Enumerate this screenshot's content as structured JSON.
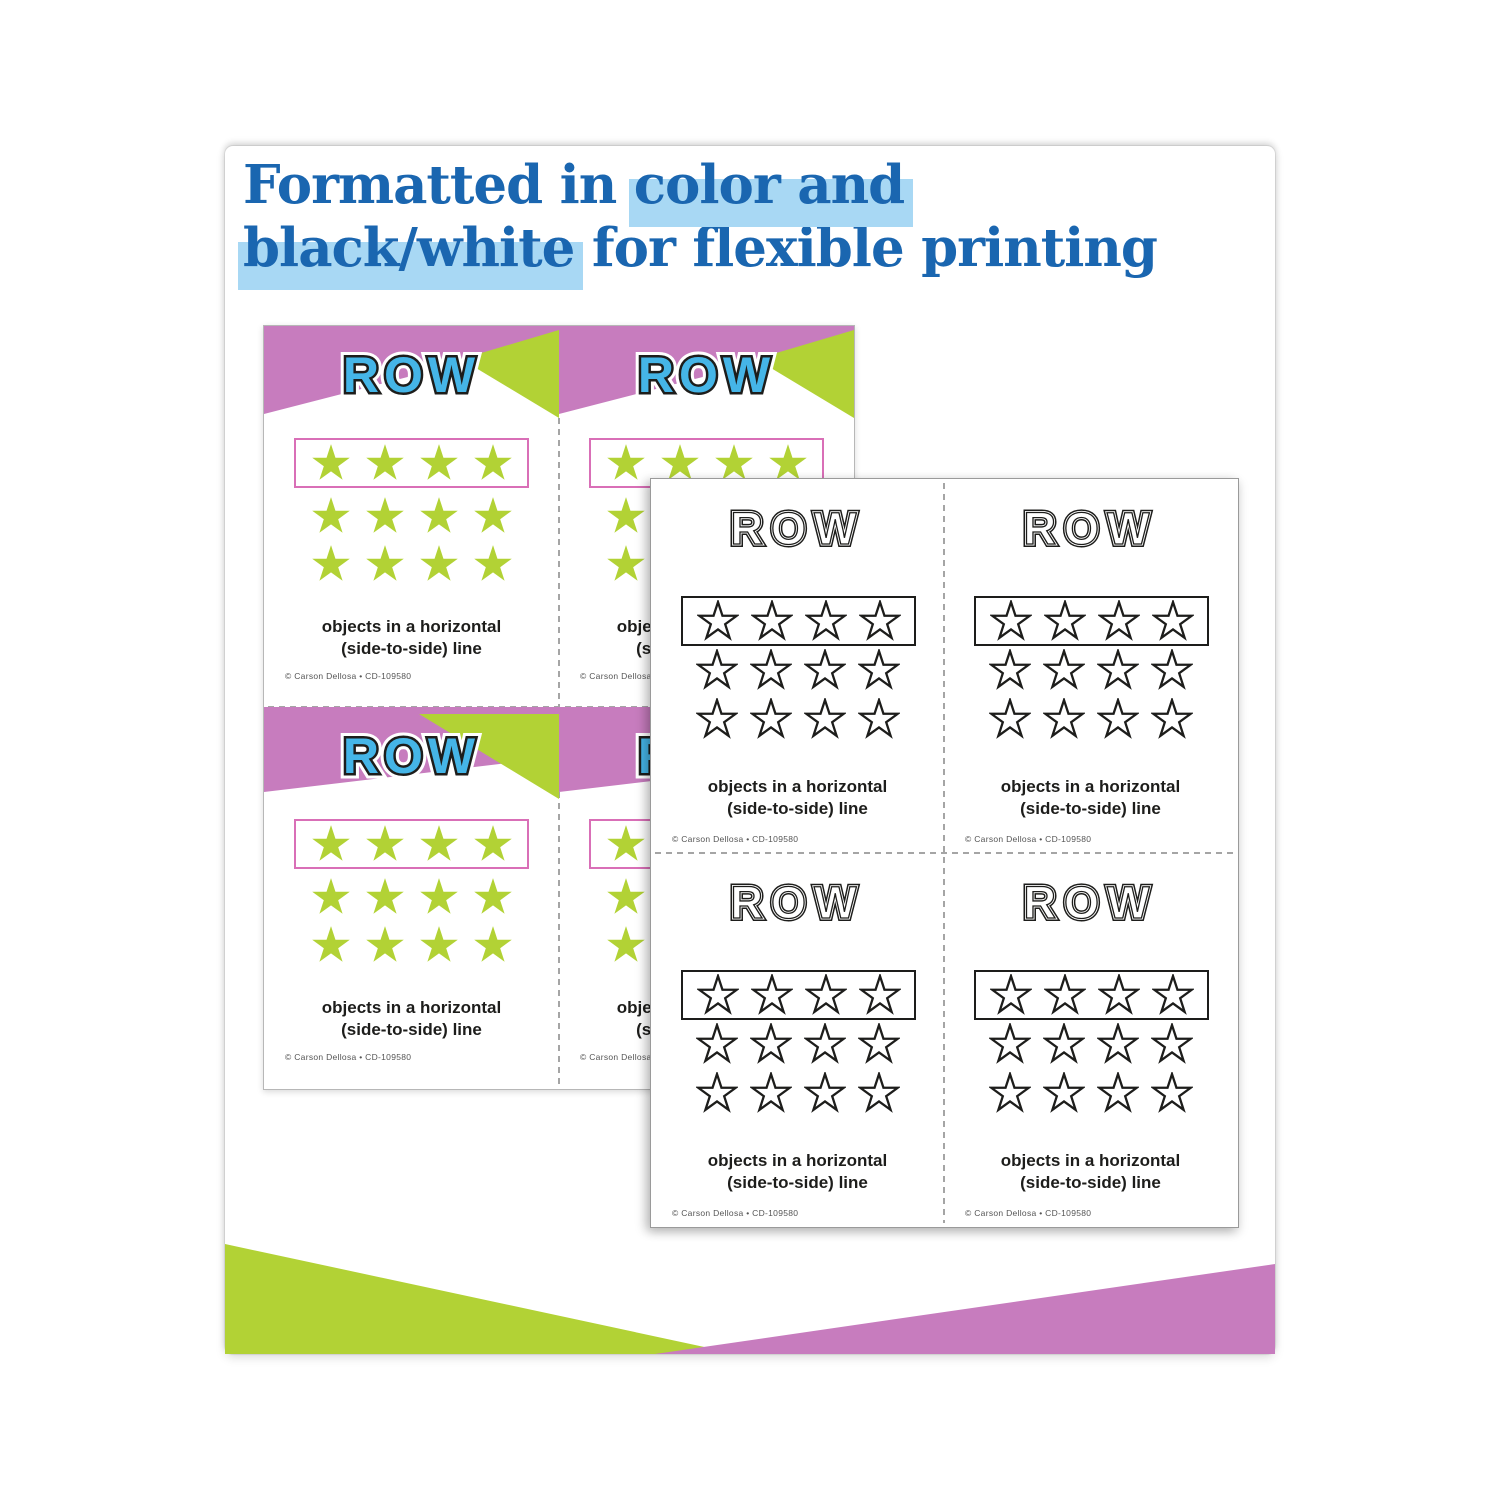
{
  "headline": {
    "line1_plain": "Formatted in ",
    "line1_highlight": "color and",
    "line2_highlight": "black/white",
    "line2_plain": " for flexible printing"
  },
  "card": {
    "title": "ROW",
    "caption_line1": "objects in a horizontal",
    "caption_line2": "(side-to-side) line",
    "copyright": "© Carson Dellosa • CD-109580",
    "star_rows": 3,
    "star_cols": 4,
    "star_icon": "star-icon"
  },
  "color_sheet": {
    "label": "color printable sheet",
    "cards": [
      {
        "header_variant": "a"
      },
      {
        "header_variant": "a"
      },
      {
        "header_variant": "b"
      },
      {
        "header_variant": "b"
      }
    ]
  },
  "bw_sheet": {
    "label": "black and white printable sheet",
    "cards": [
      {},
      {},
      {},
      {}
    ]
  },
  "colors": {
    "headline_blue": "#1a66b0",
    "highlight_blue": "#a8d8f4",
    "purple": "#c77cbe",
    "green": "#b2d235",
    "star_green": "#b2d235",
    "row_letter_blue": "#45b5e7",
    "outline_dark": "#1d1d1b",
    "pink_box_border": "#d96fb7",
    "cut_line_gray": "#a5a5a5"
  }
}
